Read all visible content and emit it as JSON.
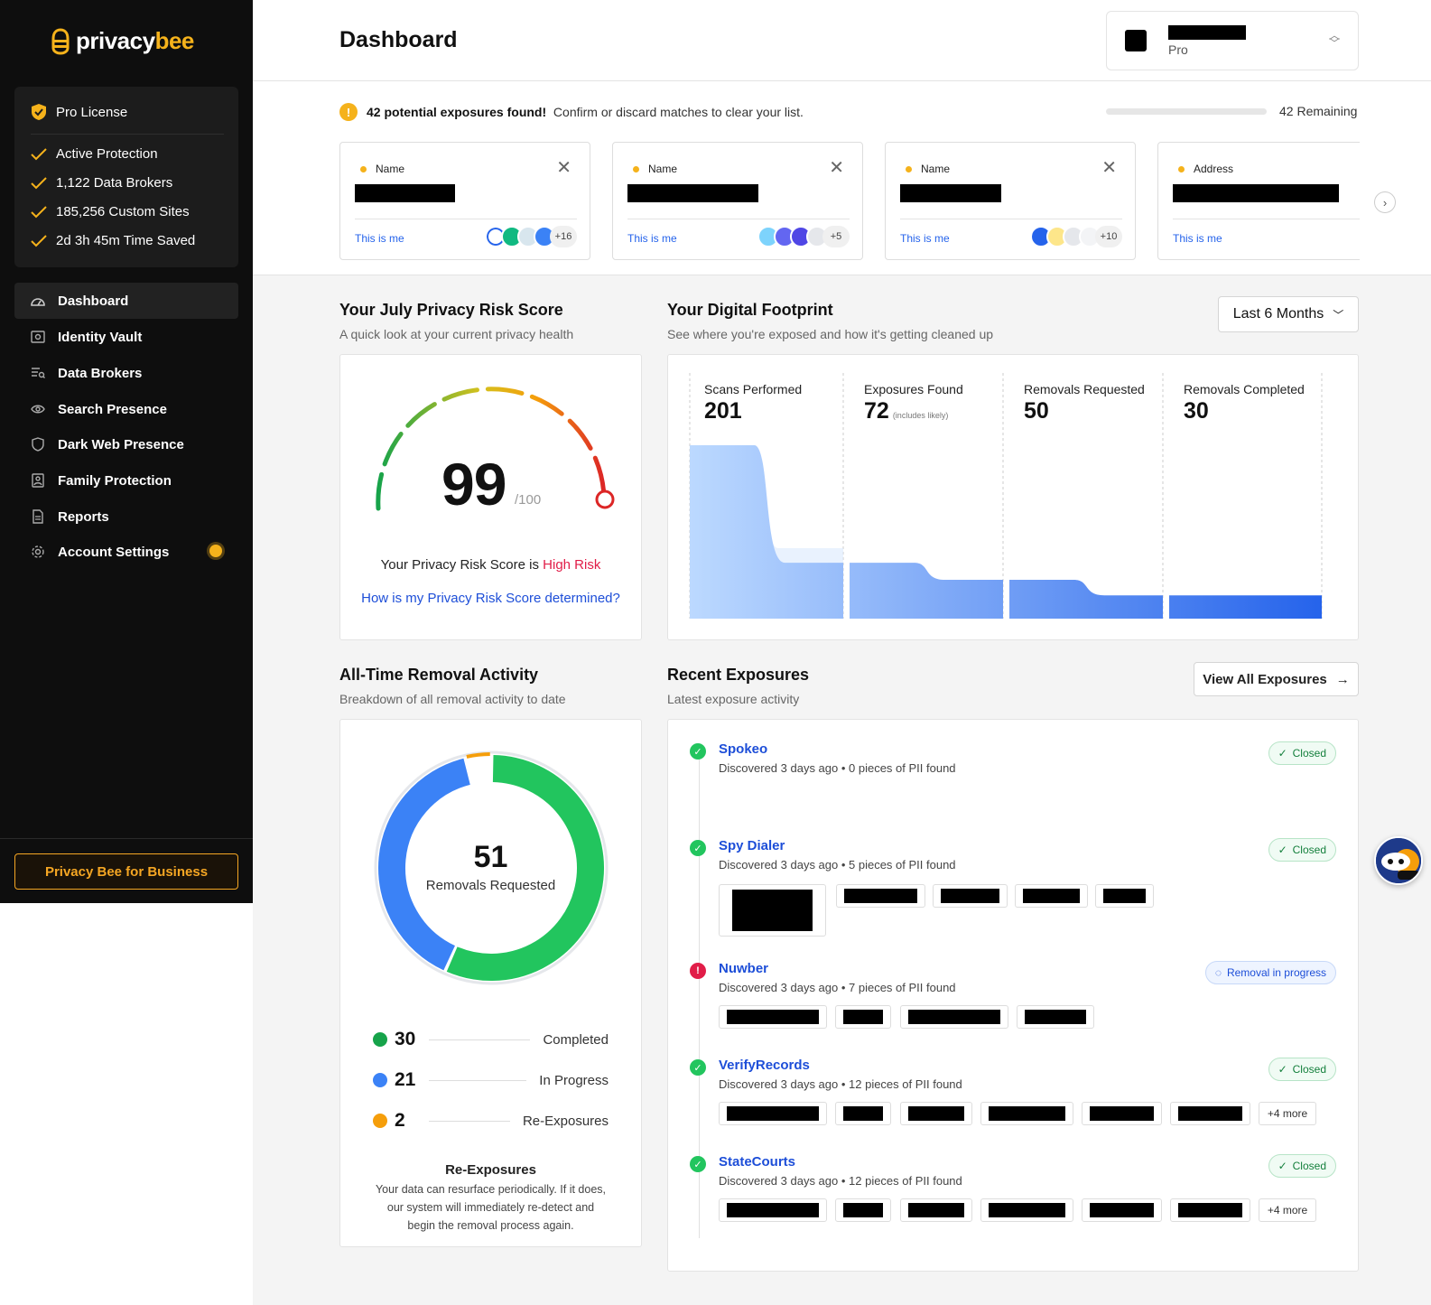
{
  "brand": {
    "word1": "privacy",
    "word2": "bee",
    "accent": "#f5b21b"
  },
  "license": {
    "title": "Pro License",
    "items": [
      "Active Protection",
      "1,122 Data Brokers",
      "185,256 Custom Sites",
      "2d 3h 45m Time Saved"
    ]
  },
  "nav": {
    "items": [
      {
        "label": "Dashboard",
        "icon": "dashboard-icon"
      },
      {
        "label": "Identity Vault",
        "icon": "vault-icon"
      },
      {
        "label": "Data Brokers",
        "icon": "brokers-icon"
      },
      {
        "label": "Search Presence",
        "icon": "eye-icon"
      },
      {
        "label": "Dark Web Presence",
        "icon": "shield-icon"
      },
      {
        "label": "Family Protection",
        "icon": "family-icon"
      },
      {
        "label": "Reports",
        "icon": "reports-icon"
      },
      {
        "label": "Account Settings",
        "icon": "gear-icon"
      }
    ]
  },
  "business_button": "Privacy Bee for Business",
  "header": {
    "title": "Dashboard",
    "plan": "Pro"
  },
  "alert": {
    "bold": "42 potential exposures found!",
    "text": "Confirm or discard matches to clear your list.",
    "remaining": "42 Remaining",
    "progress": 0
  },
  "exposure_cards": [
    {
      "type": "Name",
      "action": "This is me",
      "more": "+16"
    },
    {
      "type": "Name",
      "action": "This is me",
      "more": "+5"
    },
    {
      "type": "Name",
      "action": "This is me",
      "more": "+10"
    },
    {
      "type": "Address",
      "action": "This is me",
      "more": ""
    }
  ],
  "risk": {
    "title": "Your July Privacy Risk Score",
    "subtitle": "A quick look at your current privacy health",
    "score": "99",
    "max": "/100",
    "line_prefix": "Your Privacy Risk Score is",
    "level": "High Risk",
    "link": "How is my Privacy Risk Score determined?"
  },
  "footprint": {
    "title": "Your Digital Footprint",
    "subtitle": "See where you're exposed and how it's getting cleaned up",
    "range": "Last 6 Months",
    "stages": [
      {
        "label": "Scans Performed",
        "value": "201",
        "note": ""
      },
      {
        "label": "Exposures Found",
        "value": "72",
        "note": "(includes likely)"
      },
      {
        "label": "Removals Requested",
        "value": "50",
        "note": ""
      },
      {
        "label": "Removals Completed",
        "value": "30",
        "note": ""
      }
    ]
  },
  "removal": {
    "title": "All-Time Removal Activity",
    "subtitle": "Breakdown of all removal activity to date",
    "total": "51",
    "total_label": "Removals Requested",
    "legend": [
      {
        "value": "30",
        "label": "Completed",
        "color": "#22c55e"
      },
      {
        "value": "21",
        "label": "In Progress",
        "color": "#3b82f6"
      },
      {
        "value": "2",
        "label": "Re-Exposures",
        "color": "#f59e0b"
      }
    ],
    "reexp_title": "Re-Exposures",
    "reexp_body": "Your data can resurface periodically. If it does, our system will immediately re-detect and begin the removal process again."
  },
  "recent": {
    "title": "Recent Exposures",
    "subtitle": "Latest exposure activity",
    "view_all": "View All Exposures",
    "items": [
      {
        "name": "Spokeo",
        "desc": "Discovered 3 days ago • 0 pieces of PII found",
        "status": "Closed"
      },
      {
        "name": "Spy Dialer",
        "desc": "Discovered 3 days ago • 5 pieces of PII found",
        "status": "Closed"
      },
      {
        "name": "Nuwber",
        "desc": "Discovered 3 days ago • 7 pieces of PII found",
        "status": "Removal in progress"
      },
      {
        "name": "VerifyRecords",
        "desc": "Discovered 3 days ago • 12 pieces of PII found",
        "status": "Closed",
        "more": "+4 more"
      },
      {
        "name": "StateCourts",
        "desc": "Discovered 3 days ago • 12 pieces of PII found",
        "status": "Closed",
        "more": "+4 more"
      }
    ]
  }
}
